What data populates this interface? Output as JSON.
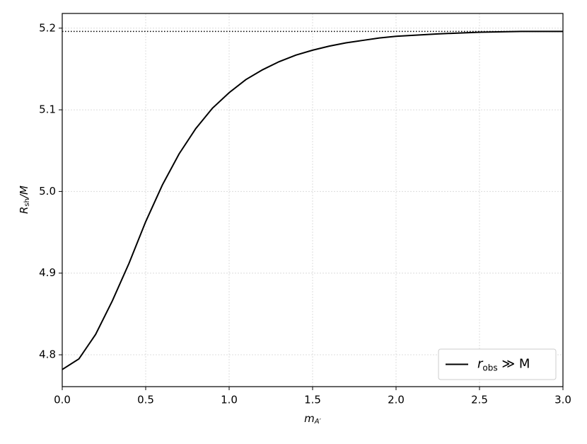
{
  "chart_data": {
    "type": "line",
    "x_label": {
      "main": "m",
      "sub": "A′"
    },
    "y_label": {
      "main": "R",
      "sub": "sh",
      "rest": "/M"
    },
    "x": [
      0,
      0.1,
      0.2,
      0.3,
      0.4,
      0.5,
      0.6,
      0.7,
      0.8,
      0.9,
      1.0,
      1.1,
      1.2,
      1.3,
      1.4,
      1.5,
      1.6,
      1.7,
      1.8,
      1.9,
      2.0,
      2.25,
      2.5,
      2.75,
      3.0
    ],
    "series": [
      {
        "name": {
          "main": "r",
          "sub": "obs",
          "rest": " ≫ M"
        },
        "color": "#000000",
        "values": [
          4.782,
          4.795,
          4.825,
          4.866,
          4.912,
          4.963,
          5.008,
          5.046,
          5.077,
          5.102,
          5.121,
          5.137,
          5.149,
          5.159,
          5.167,
          5.173,
          5.178,
          5.182,
          5.185,
          5.188,
          5.19,
          5.193,
          5.195,
          5.196,
          5.196
        ]
      }
    ],
    "hline": 5.196,
    "xlim": [
      0,
      3
    ],
    "ylim": [
      4.761,
      5.218
    ],
    "xticks": [
      {
        "value": 0,
        "label": "0.0"
      },
      0.5,
      {
        "value": 1,
        "label": "1.0"
      },
      1.5,
      {
        "value": 2,
        "label": "2.0"
      },
      2.5,
      {
        "value": 3,
        "label": "3.0"
      }
    ],
    "yticks": [
      4.8,
      4.9,
      {
        "value": 5,
        "label": "5.0"
      },
      5.1,
      5.2
    ],
    "grid": true,
    "legend": "lower right"
  }
}
